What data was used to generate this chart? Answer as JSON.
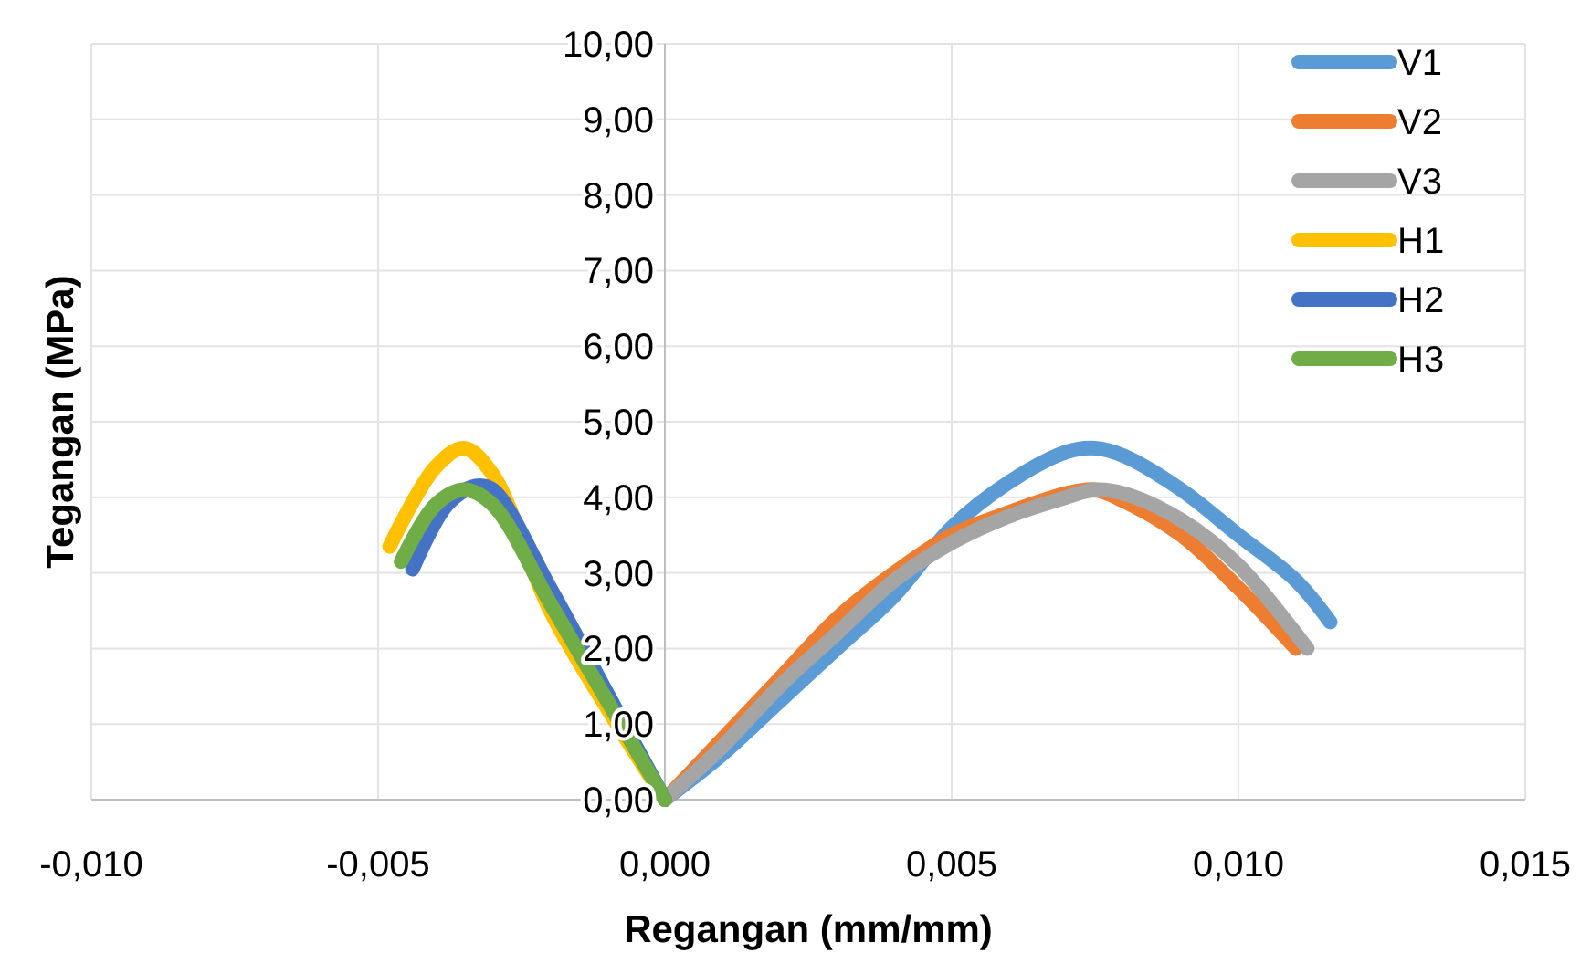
{
  "chart_data": {
    "type": "line",
    "xlabel": "Regangan (mm/mm)",
    "ylabel": "Tegangan (MPa)",
    "xlim": [
      -0.01,
      0.015
    ],
    "xticks": [
      {
        "value": -0.01,
        "label": "-0,010"
      },
      {
        "value": -0.005,
        "label": "-0,005"
      },
      {
        "value": 0,
        "label": "0,000"
      },
      {
        "value": 0.005,
        "label": "0,005"
      },
      {
        "value": 0.01,
        "label": "0,010"
      },
      {
        "value": 0.015,
        "label": "0,015"
      }
    ],
    "ylim": [
      0,
      10
    ],
    "yticks": [
      {
        "value": 0,
        "label": "0,00"
      },
      {
        "value": 1,
        "label": "1,00"
      },
      {
        "value": 2,
        "label": "2,00"
      },
      {
        "value": 3,
        "label": "3,00"
      },
      {
        "value": 4,
        "label": "4,00"
      },
      {
        "value": 5,
        "label": "5,00"
      },
      {
        "value": 6,
        "label": "6,00"
      },
      {
        "value": 7,
        "label": "7,00"
      },
      {
        "value": 8,
        "label": "8,00"
      },
      {
        "value": 9,
        "label": "9,00"
      },
      {
        "value": 10,
        "label": "10,00"
      }
    ],
    "grid": true,
    "legend": "top right",
    "marker": "none",
    "line_style": "solid",
    "series": [
      {
        "name": "V1",
        "color": "#5b9bd5",
        "x": [
          0,
          0.001,
          0.002,
          0.003,
          0.004,
          0.005,
          0.006,
          0.007,
          0.0075,
          0.008,
          0.009,
          0.01,
          0.011,
          0.0116
        ],
        "values": [
          0,
          0.6,
          1.3,
          2.0,
          2.7,
          3.6,
          4.2,
          4.6,
          4.65,
          4.55,
          4.1,
          3.5,
          2.9,
          2.35
        ]
      },
      {
        "name": "V2",
        "color": "#ed7d31",
        "x": [
          0,
          0.001,
          0.002,
          0.003,
          0.004,
          0.005,
          0.006,
          0.007,
          0.0075,
          0.008,
          0.009,
          0.01,
          0.011
        ],
        "values": [
          0,
          0.8,
          1.6,
          2.4,
          3.0,
          3.5,
          3.8,
          4.05,
          4.1,
          3.95,
          3.5,
          2.8,
          2.0
        ]
      },
      {
        "name": "V3",
        "color": "#a5a5a5",
        "x": [
          0,
          0.001,
          0.002,
          0.003,
          0.004,
          0.005,
          0.006,
          0.007,
          0.0075,
          0.008,
          0.009,
          0.01,
          0.0112
        ],
        "values": [
          0,
          0.7,
          1.5,
          2.2,
          2.9,
          3.4,
          3.75,
          4.0,
          4.1,
          4.05,
          3.7,
          3.1,
          2.0
        ]
      },
      {
        "name": "H1",
        "color": "#ffc000",
        "x": [
          0,
          -0.001,
          -0.002,
          -0.003,
          -0.0035,
          -0.004,
          -0.0048
        ],
        "values": [
          0,
          1.2,
          2.5,
          4.3,
          4.65,
          4.4,
          3.35
        ]
      },
      {
        "name": "H2",
        "color": "#4472c4",
        "x": [
          0,
          -0.001,
          -0.002,
          -0.003,
          -0.0033,
          -0.0038,
          -0.0044
        ],
        "values": [
          0,
          1.4,
          2.8,
          4.1,
          4.15,
          3.9,
          3.05
        ]
      },
      {
        "name": "H3",
        "color": "#70ad47",
        "x": [
          0,
          -0.001,
          -0.002,
          -0.003,
          -0.0035,
          -0.004,
          -0.0046
        ],
        "values": [
          0,
          1.3,
          2.6,
          3.9,
          4.1,
          3.9,
          3.15
        ]
      }
    ]
  }
}
